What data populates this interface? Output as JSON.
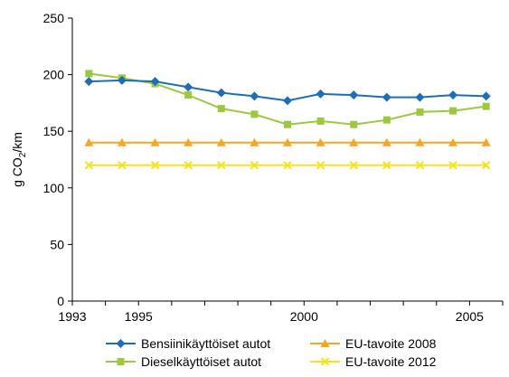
{
  "chart_data": {
    "type": "line",
    "title": "",
    "xlabel": "",
    "ylabel": "g CO",
    "ylabel_sub": "2",
    "ylabel_suffix": "/km",
    "xlim": [
      1993,
      2006
    ],
    "ylim": [
      0,
      250
    ],
    "yticks": [
      0,
      50,
      100,
      150,
      200,
      250
    ],
    "xticks": [
      1993,
      1995,
      2000,
      2005
    ],
    "grid": false,
    "legend_position": "bottom",
    "x": [
      1993.5,
      1994.5,
      1995.5,
      1996.5,
      1997.5,
      1998.5,
      1999.5,
      2000.5,
      2001.5,
      2002.5,
      2003.5,
      2004.5,
      2005.5
    ],
    "series": [
      {
        "name": "Bensiinikäyttöiset autot",
        "color": "#1f6db5",
        "marker": "diamond",
        "values": [
          194,
          195,
          194,
          189,
          184,
          181,
          177,
          183,
          182,
          180,
          180,
          182,
          181
        ]
      },
      {
        "name": "Dieselkäyttöiset autot",
        "color": "#9bc83c",
        "marker": "square",
        "values": [
          201,
          197,
          192,
          182,
          170,
          165,
          156,
          159,
          156,
          160,
          167,
          168,
          172
        ]
      },
      {
        "name": "EU-tavoite 2008",
        "color": "#f5a623",
        "marker": "triangle",
        "values": [
          140,
          140,
          140,
          140,
          140,
          140,
          140,
          140,
          140,
          140,
          140,
          140,
          140
        ]
      },
      {
        "name": "EU-tavoite 2012",
        "color": "#f7e31b",
        "marker": "x",
        "values": [
          120,
          120,
          120,
          120,
          120,
          120,
          120,
          120,
          120,
          120,
          120,
          120,
          120
        ]
      }
    ]
  }
}
